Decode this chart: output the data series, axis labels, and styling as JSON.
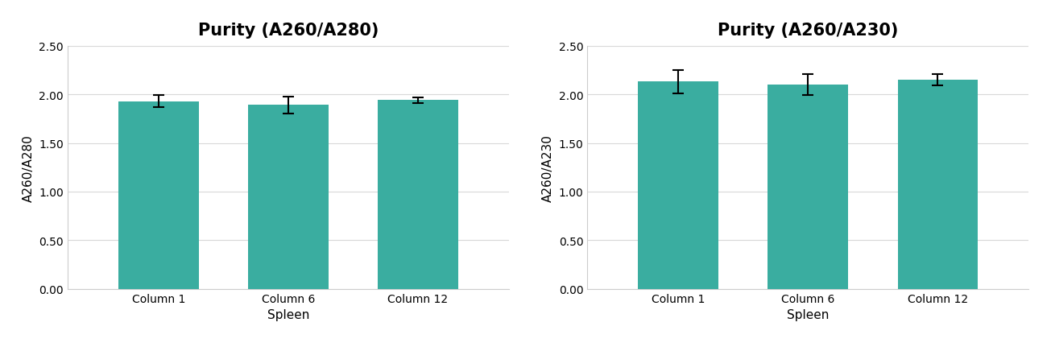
{
  "chart1": {
    "title": "Purity (A260/A280)",
    "ylabel": "A260/A280",
    "xlabel": "Spleen",
    "categories": [
      "Column 1",
      "Column 6",
      "Column 12"
    ],
    "values": [
      1.93,
      1.89,
      1.94
    ],
    "errors": [
      0.065,
      0.09,
      0.03
    ],
    "ylim": [
      0,
      2.5
    ],
    "yticks": [
      0.0,
      0.5,
      1.0,
      1.5,
      2.0,
      2.5
    ]
  },
  "chart2": {
    "title": "Purity (A260/A230)",
    "ylabel": "A260/A230",
    "xlabel": "Spleen",
    "categories": [
      "Column 1",
      "Column 6",
      "Column 12"
    ],
    "values": [
      2.13,
      2.1,
      2.15
    ],
    "errors": [
      0.12,
      0.11,
      0.06
    ],
    "ylim": [
      0,
      2.5
    ],
    "yticks": [
      0.0,
      0.5,
      1.0,
      1.5,
      2.0,
      2.5
    ]
  },
  "bar_color": "#3aada0",
  "error_color": "black",
  "bar_width": 0.62,
  "title_fontsize": 15,
  "axis_label_fontsize": 11,
  "tick_fontsize": 10,
  "title_fontweight": "bold",
  "bg_color": "#ffffff",
  "grid_color": "#d8d8d8",
  "spine_color": "#cccccc"
}
